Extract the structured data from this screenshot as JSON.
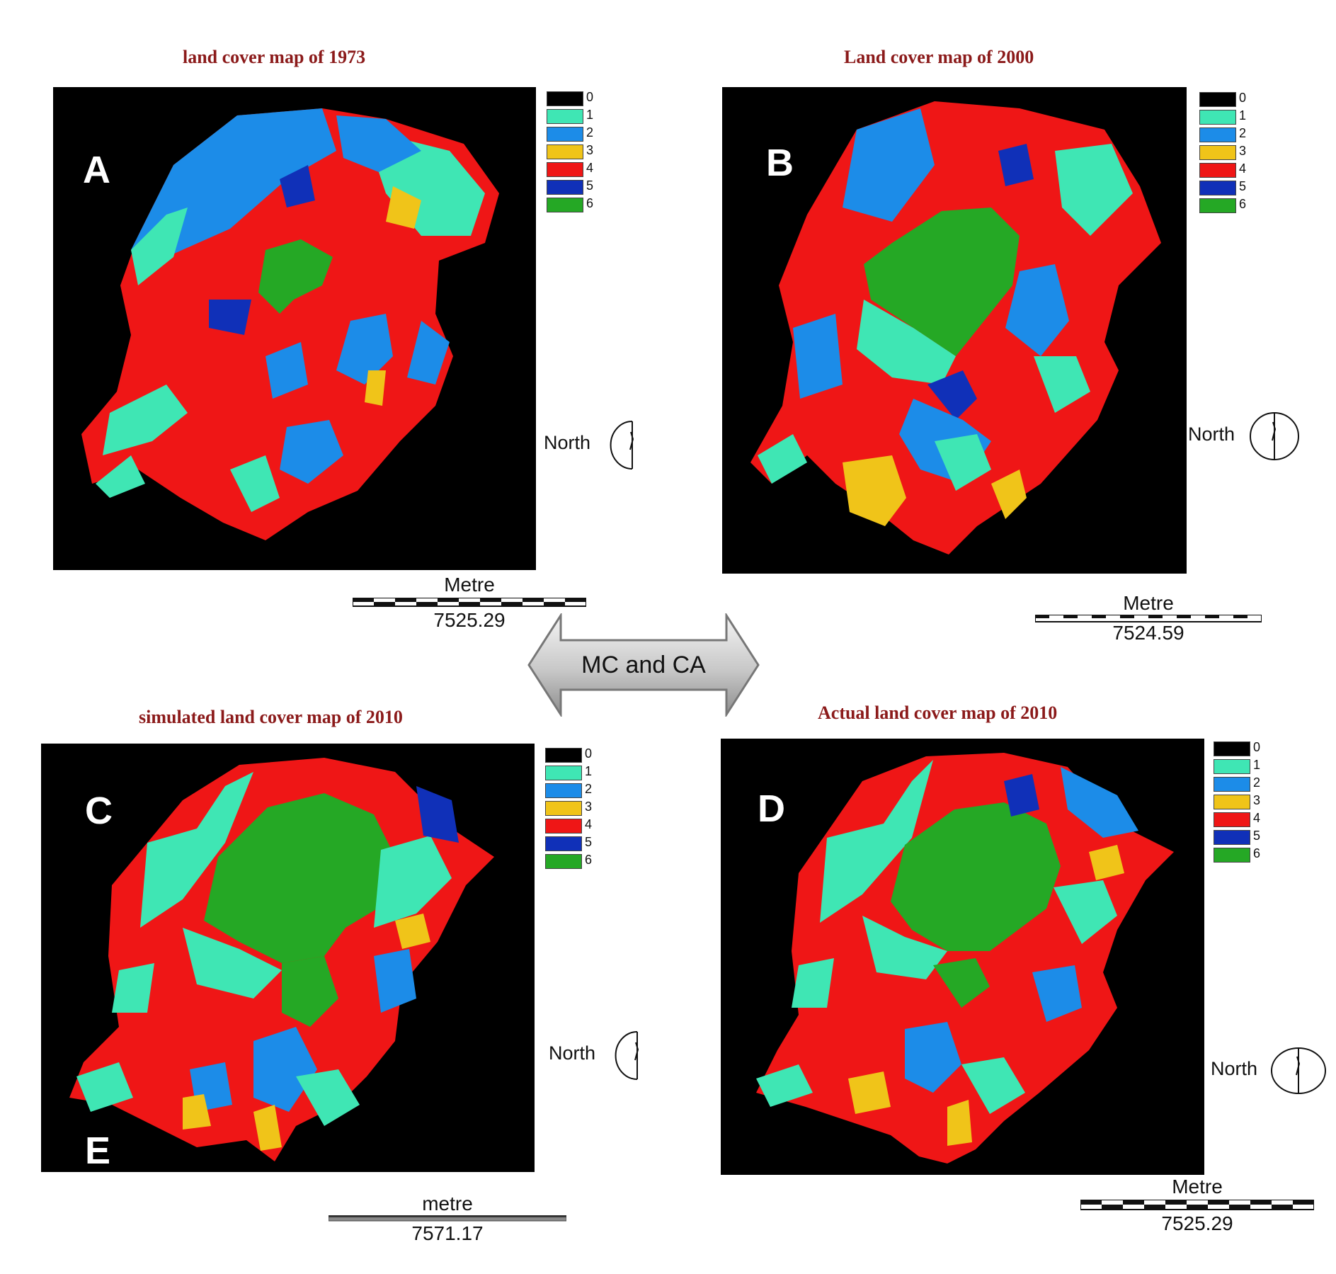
{
  "colors": {
    "class_0": "#000000",
    "class_1": "#3fe6b4",
    "class_2": "#1c8ce8",
    "class_3": "#f0c419",
    "class_4": "#ef1616",
    "class_5": "#1030b8",
    "class_6": "#25a825"
  },
  "legend_labels": [
    "0",
    "1",
    "2",
    "3",
    "4",
    "5",
    "6"
  ],
  "north_label": "North",
  "panels": {
    "a": {
      "title": "land cover map of 1973",
      "letter": "A",
      "scale_title": "Metre",
      "scale_value": "7525.29"
    },
    "b": {
      "title": "Land cover map of 2000",
      "letter": "B",
      "scale_title": "Metre",
      "scale_value": "7524.59"
    },
    "c": {
      "title": "simulated land cover map of 2010",
      "letter": "C",
      "letter_extra": "E",
      "scale_title": "metre",
      "scale_value": "7571.17"
    },
    "d": {
      "title": "Actual land cover map of 2010",
      "letter": "D",
      "scale_title": "Metre",
      "scale_value": "7525.29"
    }
  },
  "center_arrow": {
    "label": "MC and CA"
  }
}
